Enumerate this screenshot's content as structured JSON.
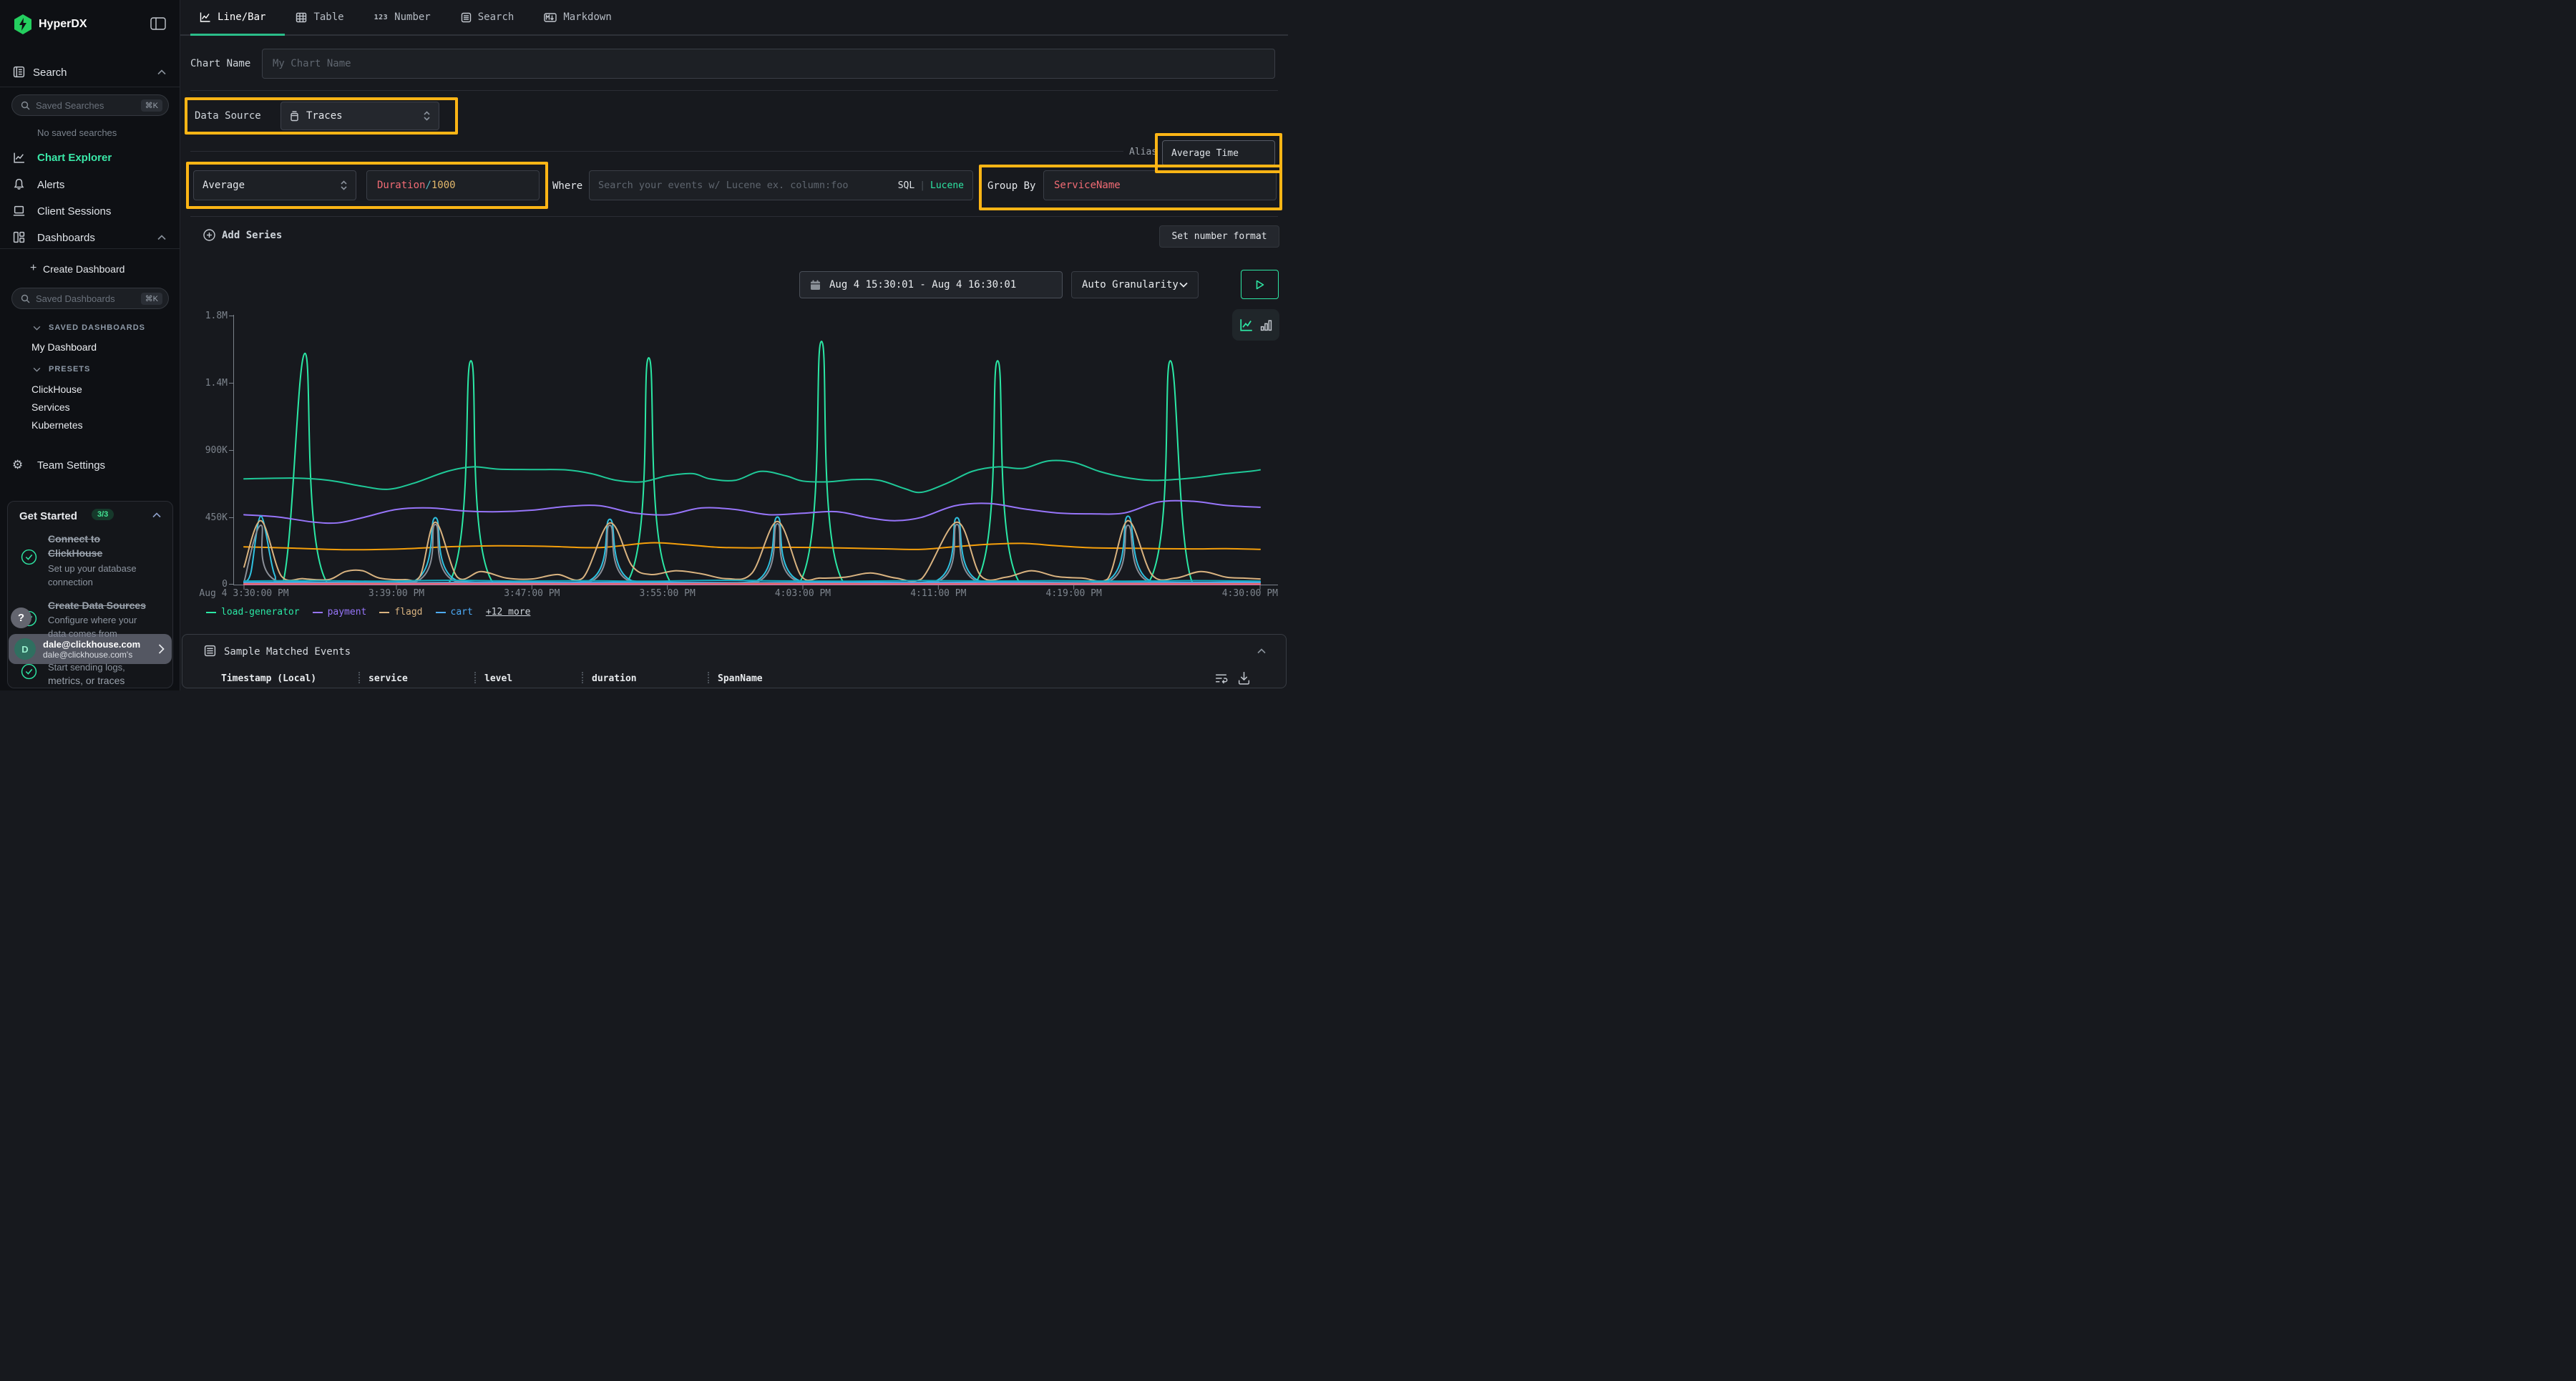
{
  "app": {
    "name": "HyperDX"
  },
  "sidebar": {
    "search_header": "Search",
    "saved_searches_placeholder": "Saved Searches",
    "shortcut": "⌘K",
    "no_saved_searches": "No saved searches",
    "chart_explorer": "Chart Explorer",
    "alerts": "Alerts",
    "client_sessions": "Client Sessions",
    "dashboards": "Dashboards",
    "create_dashboard": "Create Dashboard",
    "saved_dashboards_placeholder": "Saved Dashboards",
    "saved_dashboards_group": "SAVED DASHBOARDS",
    "my_dashboard": "My Dashboard",
    "presets_group": "PRESETS",
    "preset_clickhouse": "ClickHouse",
    "preset_services": "Services",
    "preset_kubernetes": "Kubernetes",
    "team_settings": "Team Settings",
    "get_started": {
      "title": "Get Started",
      "badge": "3/3",
      "item1_title": "Connect to ClickHouse",
      "item1_desc": "Set up your database connection",
      "item2_title": "Create Data Sources",
      "item2_desc": "Configure where your data comes from",
      "item3_desc_line1": "Start sending logs,",
      "item3_desc_line2": "metrics, or traces"
    },
    "help": "?",
    "user": {
      "initial": "D",
      "email": "dale@clickhouse.com",
      "sub": "dale@clickhouse.com's"
    }
  },
  "tabs": [
    {
      "label": "Line/Bar",
      "active": true
    },
    {
      "label": "Table"
    },
    {
      "label": "Number"
    },
    {
      "label": "Search"
    },
    {
      "label": "Markdown"
    }
  ],
  "form": {
    "chart_name_label": "Chart Name",
    "chart_name_placeholder": "My Chart Name",
    "data_source_label": "Data Source",
    "data_source_value": "Traces",
    "alias_label": "Alias",
    "alias_value": "Average Time",
    "aggregation_value": "Average",
    "expression": {
      "field": "Duration",
      "operator": "/",
      "value": "1000"
    },
    "where_label": "Where",
    "where_placeholder": "Search your events w/ Lucene ex. column:foo",
    "sql_label": "SQL",
    "divider": "|",
    "lucene_label": "Lucene",
    "group_by_label": "Group By",
    "group_by_value": "ServiceName",
    "add_series": "Add Series",
    "set_number_format": "Set number format",
    "time_range": "Aug 4 15:30:01 - Aug 4 16:30:01",
    "granularity": "Auto Granularity"
  },
  "chart_data": {
    "type": "line",
    "title": "",
    "xlabel": "",
    "ylabel": "",
    "x_unit": "minutes after Aug 4 3:30:00 PM",
    "values_in": "thousands",
    "ylim": [
      0,
      1800000
    ],
    "grid": false,
    "legend_position": "bottom-left",
    "y_ticks": [
      {
        "v": 0,
        "label": "0"
      },
      {
        "v": 450,
        "label": "450K"
      },
      {
        "v": 900,
        "label": "900K"
      },
      {
        "v": 1350,
        "label": "1.4M"
      },
      {
        "v": 1800,
        "label": "1.8M"
      }
    ],
    "x_ticks": [
      {
        "t": 0,
        "label": "Aug 4 3:30:00 PM"
      },
      {
        "t": 9,
        "label": "3:39:00 PM"
      },
      {
        "t": 17,
        "label": "3:47:00 PM"
      },
      {
        "t": 25,
        "label": "3:55:00 PM"
      },
      {
        "t": 33,
        "label": "4:03:00 PM"
      },
      {
        "t": 41,
        "label": "4:11:00 PM"
      },
      {
        "t": 49,
        "label": "4:19:00 PM"
      },
      {
        "t": 60,
        "label": "4:30:00 PM"
      }
    ],
    "legend": [
      {
        "label": "load-generator",
        "color": "#2be8a5"
      },
      {
        "label": "payment",
        "color": "#9775fa"
      },
      {
        "label": "flagd",
        "color": "#d9b380"
      },
      {
        "label": "cart",
        "color": "#4dabf7"
      }
    ],
    "legend_more": "+12 more",
    "series": [
      {
        "name": "load-generator",
        "color": "#2be8a5",
        "points": [
          [
            0,
            12
          ],
          [
            2.3,
            14
          ],
          [
            3.6,
            1550
          ],
          [
            4.9,
            16
          ],
          [
            12.1,
            14
          ],
          [
            13.4,
            1500
          ],
          [
            14.7,
            15
          ],
          [
            22.6,
            14
          ],
          [
            23.9,
            1520
          ],
          [
            25.2,
            15
          ],
          [
            32.8,
            14
          ],
          [
            34.1,
            1630
          ],
          [
            35.4,
            16
          ],
          [
            43.2,
            14
          ],
          [
            44.5,
            1500
          ],
          [
            45.8,
            15
          ],
          [
            53.4,
            14
          ],
          [
            54.7,
            1500
          ],
          [
            56,
            15
          ],
          [
            60,
            12
          ]
        ]
      },
      {
        "name": "",
        "color": "#1fc998",
        "points": [
          [
            0,
            710
          ],
          [
            3,
            715
          ],
          [
            5,
            700
          ],
          [
            7,
            660
          ],
          [
            8.5,
            640
          ],
          [
            10,
            680
          ],
          [
            12,
            760
          ],
          [
            13.5,
            790
          ],
          [
            15,
            775
          ],
          [
            17,
            772
          ],
          [
            19,
            770
          ],
          [
            20.5,
            745
          ],
          [
            22,
            700
          ],
          [
            23.5,
            690
          ],
          [
            25,
            730
          ],
          [
            26.5,
            745
          ],
          [
            27.5,
            710
          ],
          [
            29,
            700
          ],
          [
            30.5,
            760
          ],
          [
            32,
            730
          ],
          [
            33,
            695
          ],
          [
            34.5,
            690
          ],
          [
            36,
            705
          ],
          [
            37.5,
            700
          ],
          [
            39,
            645
          ],
          [
            40,
            620
          ],
          [
            41.5,
            680
          ],
          [
            43,
            760
          ],
          [
            44.5,
            790
          ],
          [
            46,
            780
          ],
          [
            47.5,
            830
          ],
          [
            49,
            820
          ],
          [
            50.5,
            760
          ],
          [
            52,
            720
          ],
          [
            53.5,
            700
          ],
          [
            55,
            706
          ],
          [
            56.5,
            722
          ],
          [
            58,
            745
          ],
          [
            59.5,
            762
          ],
          [
            60,
            770
          ]
        ]
      },
      {
        "name": "payment",
        "color": "#9775fa",
        "points": [
          [
            0,
            470
          ],
          [
            2,
            455
          ],
          [
            4,
            422
          ],
          [
            5.5,
            415
          ],
          [
            7,
            450
          ],
          [
            9,
            505
          ],
          [
            11,
            515
          ],
          [
            13,
            495
          ],
          [
            15,
            490
          ],
          [
            17,
            500
          ],
          [
            19,
            525
          ],
          [
            21,
            530
          ],
          [
            23,
            482
          ],
          [
            25,
            470
          ],
          [
            27,
            515
          ],
          [
            29,
            505
          ],
          [
            31,
            470
          ],
          [
            33,
            480
          ],
          [
            35,
            490
          ],
          [
            37,
            447
          ],
          [
            38.5,
            430
          ],
          [
            40,
            452
          ],
          [
            42,
            530
          ],
          [
            44,
            545
          ],
          [
            46,
            510
          ],
          [
            48,
            482
          ],
          [
            50,
            476
          ],
          [
            52,
            482
          ],
          [
            54,
            555
          ],
          [
            56,
            560
          ],
          [
            58,
            532
          ],
          [
            60,
            520
          ]
        ]
      },
      {
        "name": "",
        "color": "#f59f0b",
        "points": [
          [
            0,
            255
          ],
          [
            3,
            246
          ],
          [
            6,
            236
          ],
          [
            9,
            240
          ],
          [
            12,
            255
          ],
          [
            15,
            262
          ],
          [
            18,
            258
          ],
          [
            21,
            250
          ],
          [
            24,
            282
          ],
          [
            26,
            270
          ],
          [
            28,
            252
          ],
          [
            30,
            248
          ],
          [
            32,
            252
          ],
          [
            34,
            250
          ],
          [
            36,
            246
          ],
          [
            38,
            241
          ],
          [
            40,
            238
          ],
          [
            42,
            256
          ],
          [
            44,
            272
          ],
          [
            46,
            278
          ],
          [
            48,
            262
          ],
          [
            50,
            249
          ],
          [
            52,
            246
          ],
          [
            54,
            243
          ],
          [
            56,
            241
          ],
          [
            58,
            243
          ],
          [
            60,
            238
          ]
        ]
      },
      {
        "name": "",
        "color": "#2fc1e0",
        "points": [
          [
            0,
            22
          ],
          [
            0.4,
            80
          ],
          [
            1,
            460
          ],
          [
            1.8,
            70
          ],
          [
            2.6,
            24
          ],
          [
            10,
            24
          ],
          [
            11.3,
            450
          ],
          [
            12.6,
            28
          ],
          [
            20.3,
            24
          ],
          [
            21.6,
            440
          ],
          [
            22.9,
            28
          ],
          [
            30.2,
            24
          ],
          [
            31.5,
            455
          ],
          [
            32.8,
            28
          ],
          [
            40.8,
            24
          ],
          [
            42.1,
            450
          ],
          [
            43.4,
            28
          ],
          [
            50.9,
            24
          ],
          [
            52.2,
            460
          ],
          [
            53.5,
            28
          ],
          [
            60,
            22
          ]
        ]
      },
      {
        "name": "",
        "color": "#8a8f98",
        "points": [
          [
            0,
            18
          ],
          [
            1,
            400
          ],
          [
            2,
            24
          ],
          [
            10.1,
            20
          ],
          [
            11.3,
            405
          ],
          [
            12.5,
            24
          ],
          [
            20.4,
            20
          ],
          [
            21.6,
            400
          ],
          [
            22.8,
            24
          ],
          [
            30.3,
            20
          ],
          [
            31.5,
            410
          ],
          [
            32.7,
            24
          ],
          [
            40.9,
            20
          ],
          [
            42.1,
            405
          ],
          [
            43.3,
            24
          ],
          [
            51,
            20
          ],
          [
            52.2,
            400
          ],
          [
            53.4,
            24
          ],
          [
            60,
            18
          ]
        ]
      },
      {
        "name": "flagd",
        "color": "#d9b380",
        "points": [
          [
            0,
            120
          ],
          [
            1,
            430
          ],
          [
            2.2,
            60
          ],
          [
            3.5,
            42
          ],
          [
            5,
            36
          ],
          [
            6,
            90
          ],
          [
            7,
            95
          ],
          [
            8,
            46
          ],
          [
            9.5,
            36
          ],
          [
            10.4,
            60
          ],
          [
            11.3,
            420
          ],
          [
            12.6,
            52
          ],
          [
            14,
            90
          ],
          [
            15.5,
            46
          ],
          [
            17,
            40
          ],
          [
            18.5,
            70
          ],
          [
            20,
            46
          ],
          [
            21.6,
            415
          ],
          [
            22.9,
            130
          ],
          [
            24,
            70
          ],
          [
            25.5,
            95
          ],
          [
            27,
            75
          ],
          [
            28.5,
            42
          ],
          [
            30,
            80
          ],
          [
            31.5,
            425
          ],
          [
            32.9,
            60
          ],
          [
            34,
            46
          ],
          [
            35.5,
            52
          ],
          [
            37,
            80
          ],
          [
            38.5,
            46
          ],
          [
            40,
            40
          ],
          [
            42.1,
            420
          ],
          [
            43.5,
            62
          ],
          [
            45,
            52
          ],
          [
            46.5,
            95
          ],
          [
            48,
            56
          ],
          [
            49.5,
            46
          ],
          [
            51,
            40
          ],
          [
            52.2,
            430
          ],
          [
            53.6,
            70
          ],
          [
            55,
            46
          ],
          [
            56.5,
            90
          ],
          [
            58,
            52
          ],
          [
            59,
            46
          ],
          [
            60,
            40
          ]
        ]
      },
      {
        "name": "cart",
        "color": "#4dabf7",
        "points": [
          [
            0,
            16
          ],
          [
            5,
            17
          ],
          [
            10,
            15
          ],
          [
            15,
            18
          ],
          [
            20,
            16
          ],
          [
            25,
            17
          ],
          [
            30,
            15
          ],
          [
            35,
            17
          ],
          [
            40,
            16
          ],
          [
            45,
            18
          ],
          [
            50,
            15
          ],
          [
            55,
            17
          ],
          [
            60,
            16
          ]
        ]
      },
      {
        "name": "",
        "color": "#e8590c",
        "points": [
          [
            0,
            8
          ],
          [
            10,
            9
          ],
          [
            20,
            8
          ],
          [
            30,
            9
          ],
          [
            40,
            8
          ],
          [
            50,
            9
          ],
          [
            60,
            8
          ]
        ]
      },
      {
        "name": "",
        "color": "#15aabf",
        "points": [
          [
            0,
            26
          ],
          [
            4,
            29
          ],
          [
            8,
            25
          ],
          [
            12,
            31
          ],
          [
            16,
            26
          ],
          [
            20,
            28
          ],
          [
            24,
            25
          ],
          [
            28,
            31
          ],
          [
            32,
            27
          ],
          [
            36,
            25
          ],
          [
            40,
            29
          ],
          [
            44,
            26
          ],
          [
            48,
            28
          ],
          [
            52,
            25
          ],
          [
            56,
            29
          ],
          [
            60,
            26
          ]
        ]
      },
      {
        "name": "",
        "color": "#f06595",
        "points": [
          [
            0,
            5
          ],
          [
            15,
            6
          ],
          [
            30,
            5
          ],
          [
            45,
            6
          ],
          [
            60,
            5
          ]
        ]
      }
    ]
  },
  "events_panel": {
    "title": "Sample Matched Events",
    "columns": [
      "Timestamp (Local)",
      "service",
      "level",
      "duration",
      "SpanName"
    ]
  },
  "colors": {
    "accent_green": "#2ee6a4",
    "brand_green": "#24cf5f",
    "highlight_yellow": "#FDB515",
    "code_red": "#f16b74",
    "code_orange": "#e3b86c",
    "code_cyan": "#56b6c2"
  }
}
